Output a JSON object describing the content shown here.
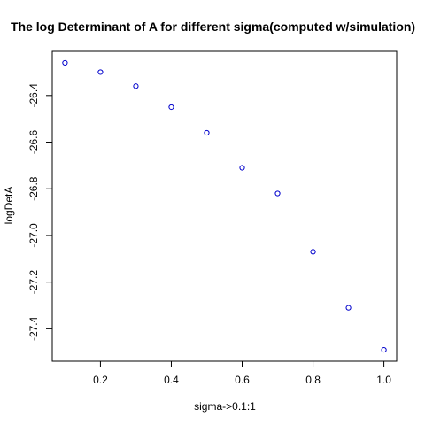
{
  "chart_data": {
    "type": "scatter",
    "title": "The log Determinant of A for different sigma(computed w/simulation)",
    "xlabel": "sigma->0.1:1",
    "ylabel": "logDetA",
    "x": [
      0.1,
      0.2,
      0.3,
      0.4,
      0.5,
      0.6,
      0.7,
      0.8,
      0.9,
      1.0
    ],
    "y": [
      -26.26,
      -26.3,
      -26.36,
      -26.45,
      -26.56,
      -26.71,
      -26.82,
      -27.07,
      -27.31,
      -27.49
    ],
    "xticks": [
      0.2,
      0.4,
      0.6,
      0.8,
      1.0
    ],
    "xtick_labels": [
      "0.2",
      "0.4",
      "0.6",
      "0.8",
      "1.0"
    ],
    "yticks": [
      -26.4,
      -26.6,
      -26.8,
      -27.0,
      -27.2,
      -27.4
    ],
    "ytick_labels": [
      "-26.4",
      "-26.6",
      "-26.8",
      "-27.0",
      "-27.2",
      "-27.4"
    ],
    "xlim": [
      0.064,
      1.036
    ],
    "ylim": [
      -27.539,
      -26.211
    ],
    "marker": "open-circle",
    "point_color": "#0000cc",
    "grid": false,
    "legend": "none"
  }
}
